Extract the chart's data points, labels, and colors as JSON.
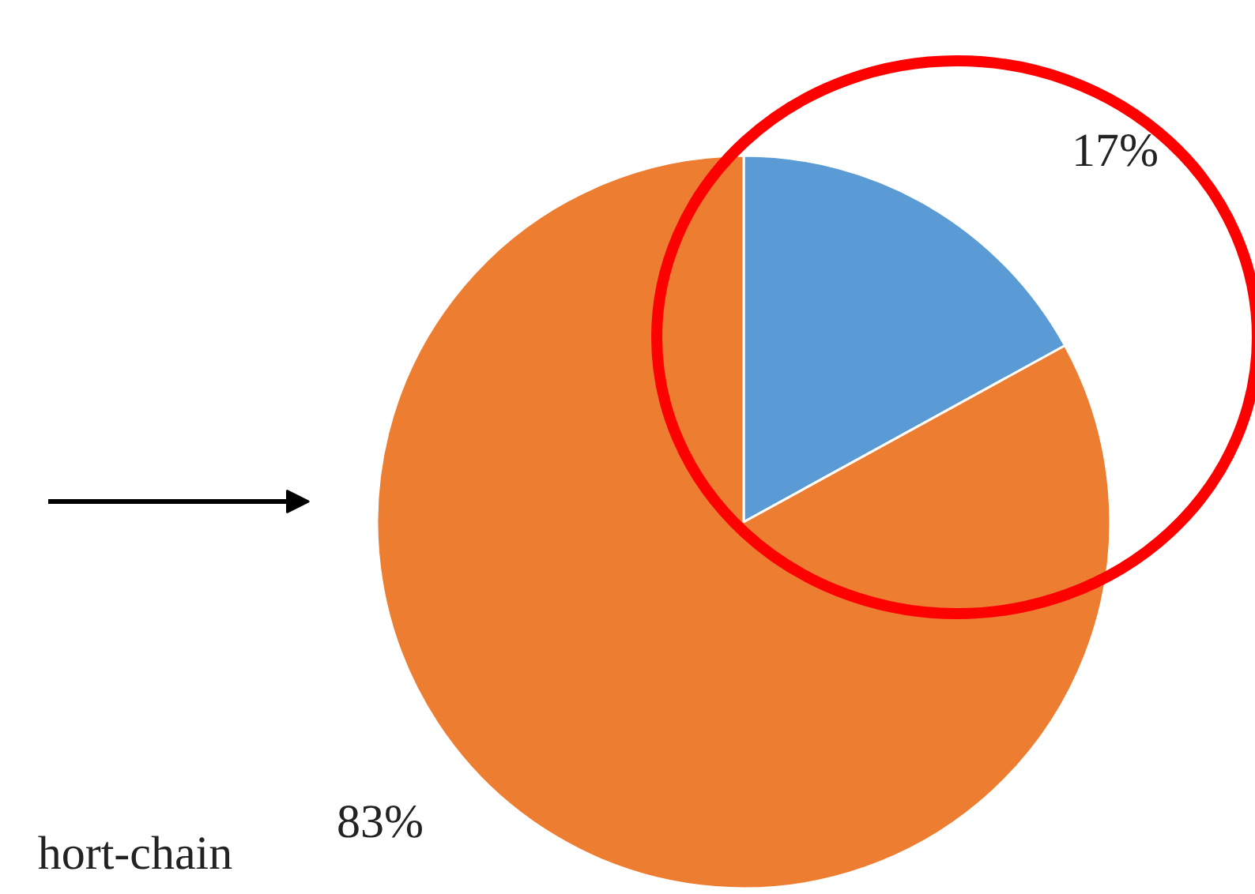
{
  "chart_data": {
    "type": "pie",
    "categories": [
      null,
      null
    ],
    "values": [
      17,
      83
    ],
    "colors": [
      "#5b9bd5",
      "#ed7d31"
    ],
    "value_labels": [
      "17%",
      "83%"
    ],
    "annotations": [
      "hort-chain"
    ]
  }
}
